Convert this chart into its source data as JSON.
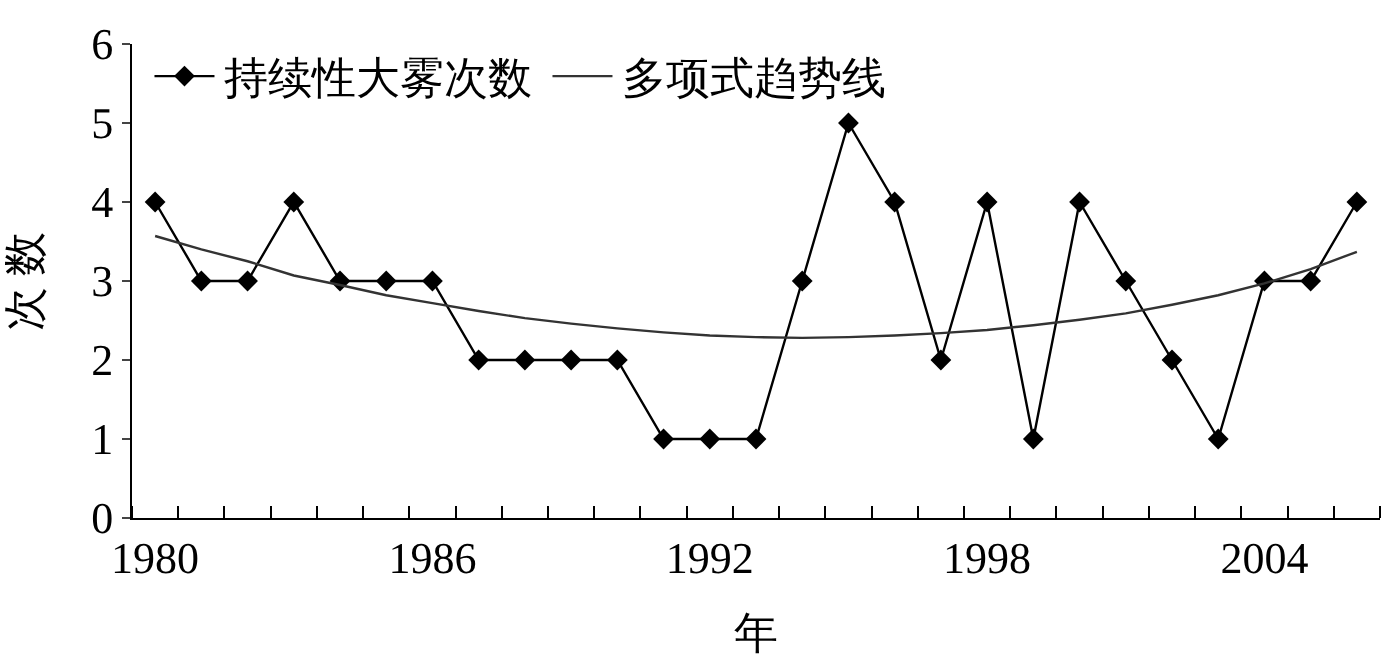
{
  "chart_data": {
    "type": "line",
    "xlabel": "年",
    "ylabel": "次 数",
    "categories": [
      "1980",
      null,
      null,
      null,
      null,
      null,
      "1986",
      null,
      null,
      null,
      null,
      null,
      "1992",
      null,
      null,
      null,
      null,
      null,
      "1998",
      null,
      null,
      null,
      null,
      null,
      "2004",
      null,
      null
    ],
    "series": [
      {
        "name": "持续性大雾次数",
        "color": "#000000",
        "marker": "diamond",
        "values": [
          4,
          3,
          3,
          4,
          3,
          3,
          3,
          2,
          2,
          2,
          2,
          1,
          1,
          1,
          3,
          5,
          4,
          2,
          4,
          1,
          4,
          3,
          2,
          1,
          3,
          3,
          4
        ]
      },
      {
        "name": "多项式趋势线",
        "color": "#333333",
        "marker": "none",
        "values": [
          3.57,
          3.4,
          3.25,
          3.07,
          2.95,
          2.82,
          2.72,
          2.62,
          2.53,
          2.46,
          2.4,
          2.35,
          2.31,
          2.29,
          2.28,
          2.29,
          2.31,
          2.34,
          2.38,
          2.44,
          2.51,
          2.59,
          2.7,
          2.82,
          2.97,
          3.15,
          3.37
        ]
      }
    ],
    "ylim": [
      0,
      6
    ],
    "yticks": [
      0,
      1,
      2,
      3,
      4,
      5,
      6
    ],
    "grid": false,
    "legend": "top left",
    "line_style": "solid"
  }
}
